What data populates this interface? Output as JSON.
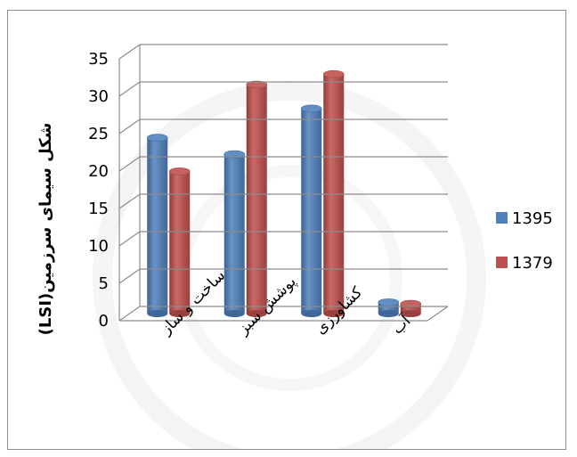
{
  "chart_data": {
    "type": "bar",
    "categories": [
      "ساخت و ساز",
      "پوشش سبز",
      "کشاورزی",
      "آب"
    ],
    "series": [
      {
        "name": "1395",
        "values": [
          23.5,
          21.3,
          27.4,
          1.5
        ],
        "color": "#4f81bd"
      },
      {
        "name": "1379",
        "values": [
          19.0,
          30.6,
          32.0,
          1.3
        ],
        "color": "#c0504d"
      }
    ],
    "xlabel": "",
    "ylabel": "شکل سیمای سرزمین(LSI)",
    "ylim": [
      0,
      35
    ],
    "yticks": [
      "0",
      "5",
      "10",
      "15",
      "20",
      "25",
      "30",
      "35"
    ],
    "grid": true,
    "legend_position": "right",
    "style": "3d-cylinder"
  }
}
